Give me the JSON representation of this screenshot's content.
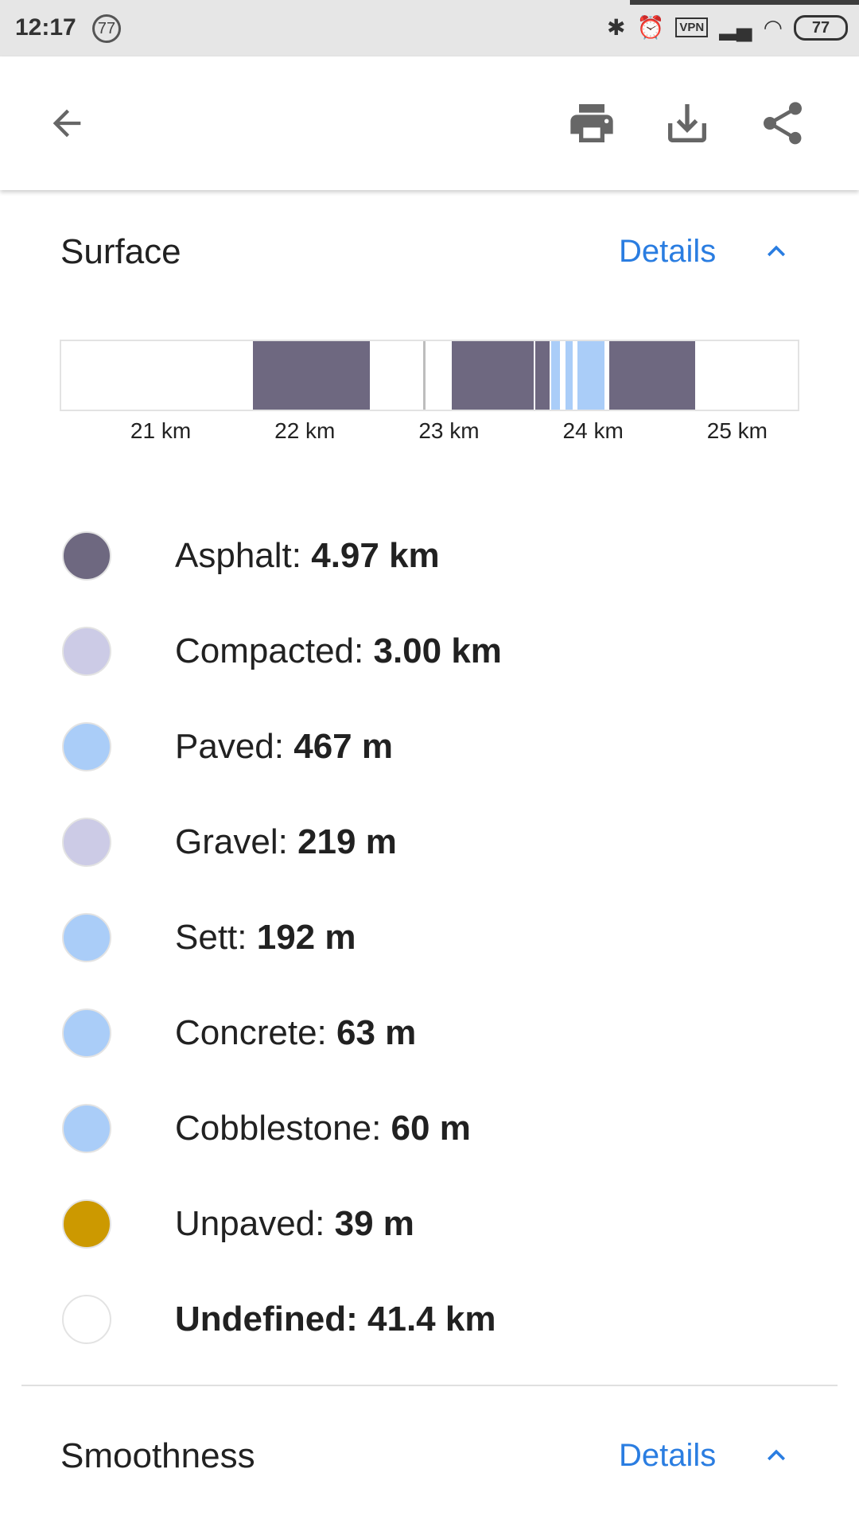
{
  "status_bar": {
    "time": "12:17",
    "notification_badge": "77",
    "vpn": "VPN",
    "battery": "77"
  },
  "toolbar": {
    "back_icon": "arrow-left",
    "print_icon": "printer",
    "download_icon": "download",
    "share_icon": "share"
  },
  "surface": {
    "title": "Surface",
    "details_label": "Details",
    "chart_data": {
      "type": "bar",
      "orientation": "horizontal-stacked-strip",
      "x_unit": "km",
      "xlim": [
        20.31,
        25.42
      ],
      "ticks": [
        "21 km",
        "22 km",
        "23 km",
        "24 km",
        "25 km"
      ],
      "tick_values": [
        21,
        22,
        23,
        24,
        25
      ],
      "segments": [
        {
          "type": "Asphalt",
          "start": 21.64,
          "end": 22.45,
          "color": "#6e6880"
        },
        {
          "type": "Undefined",
          "start": 22.82,
          "end": 22.84,
          "color": "#bdbdbd"
        },
        {
          "type": "Asphalt",
          "start": 23.02,
          "end": 23.59,
          "color": "#6e6880"
        },
        {
          "type": "Asphalt",
          "start": 23.6,
          "end": 23.7,
          "color": "#6e6880"
        },
        {
          "type": "Paved",
          "start": 23.71,
          "end": 23.77,
          "color": "#aacdf8"
        },
        {
          "type": "Paved",
          "start": 23.81,
          "end": 23.86,
          "color": "#aacdf8"
        },
        {
          "type": "Paved",
          "start": 23.89,
          "end": 24.08,
          "color": "#aacdf8"
        },
        {
          "type": "Asphalt",
          "start": 24.11,
          "end": 24.71,
          "color": "#6e6880"
        }
      ]
    },
    "legend": [
      {
        "name": "Asphalt:",
        "value": "4.97 km",
        "color": "#6e6880"
      },
      {
        "name": "Compacted:",
        "value": "3.00 km",
        "color": "#cccbe6"
      },
      {
        "name": "Paved:",
        "value": "467 m",
        "color": "#aacdf8"
      },
      {
        "name": "Gravel:",
        "value": "219 m",
        "color": "#cccbe6"
      },
      {
        "name": "Sett:",
        "value": "192 m",
        "color": "#aacdf8"
      },
      {
        "name": "Concrete:",
        "value": "63 m",
        "color": "#aacdf8"
      },
      {
        "name": "Cobblestone:",
        "value": "60 m",
        "color": "#aacdf8"
      },
      {
        "name": "Unpaved:",
        "value": "39 m",
        "color": "#cc9900"
      },
      {
        "name": "Undefined:",
        "value": "41.4 km",
        "color": "#ffffff",
        "bold": true
      }
    ]
  },
  "smoothness": {
    "title": "Smoothness",
    "details_label": "Details"
  },
  "colors": {
    "accent": "#2a7de1"
  }
}
